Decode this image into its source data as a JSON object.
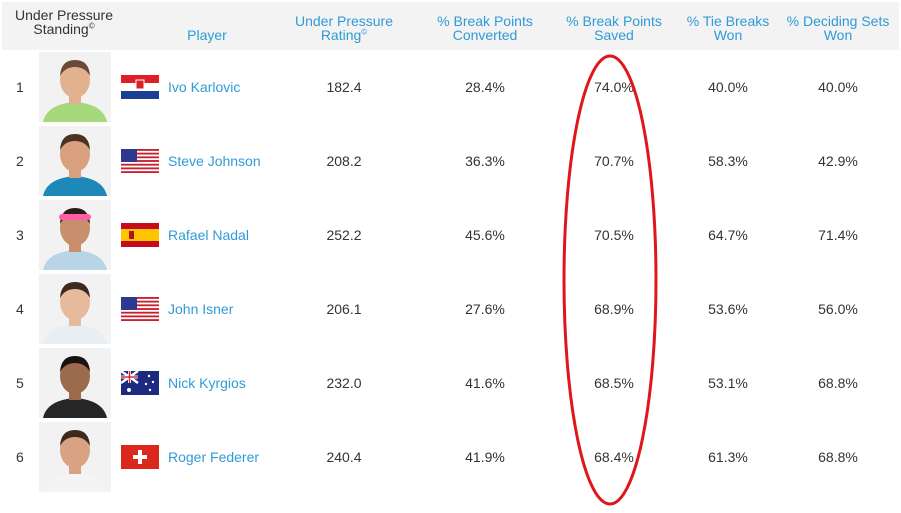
{
  "headers": {
    "standing": "Under Pressure Standing",
    "player": "Player",
    "rating": "Under Pressure Rating",
    "bp_converted": "% Break Points Converted",
    "bp_saved": "% Break Points Saved",
    "tie_breaks": "% Tie Breaks Won",
    "deciding_sets": "% Deciding Sets Won",
    "copyright_mark": "©"
  },
  "rows": [
    {
      "rank": "1",
      "player": "Ivo Karlovic",
      "flag": "croatia-flag",
      "rating": "182.4",
      "bp_converted": "28.4%",
      "bp_saved": "74.0%",
      "tie_breaks": "40.0%",
      "deciding_sets": "40.0%",
      "shirt_color": "#a5d87b",
      "skin_color": "#e2b28f",
      "hair_color": "#6b4a35"
    },
    {
      "rank": "2",
      "player": "Steve Johnson",
      "flag": "usa-flag",
      "rating": "208.2",
      "bp_converted": "36.3%",
      "bp_saved": "70.7%",
      "tie_breaks": "58.3%",
      "deciding_sets": "42.9%",
      "shirt_color": "#1e88b8",
      "skin_color": "#d9a07e",
      "hair_color": "#4a3322"
    },
    {
      "rank": "3",
      "player": "Rafael Nadal",
      "flag": "spain-flag",
      "rating": "252.2",
      "bp_converted": "45.6%",
      "bp_saved": "70.5%",
      "tie_breaks": "64.7%",
      "deciding_sets": "71.4%",
      "shirt_color": "#b8d4e6",
      "skin_color": "#c98f6c",
      "hair_color": "#2b1d15"
    },
    {
      "rank": "4",
      "player": "John Isner",
      "flag": "usa-flag",
      "rating": "206.1",
      "bp_converted": "27.6%",
      "bp_saved": "68.9%",
      "tie_breaks": "53.6%",
      "deciding_sets": "56.0%",
      "shirt_color": "#e9eef2",
      "skin_color": "#e6bb9b",
      "hair_color": "#3b2a20"
    },
    {
      "rank": "5",
      "player": "Nick Kyrgios",
      "flag": "australia-flag",
      "rating": "232.0",
      "bp_converted": "41.6%",
      "bp_saved": "68.5%",
      "tie_breaks": "53.1%",
      "deciding_sets": "68.8%",
      "shirt_color": "#262626",
      "skin_color": "#9c6a4d",
      "hair_color": "#1a1410"
    },
    {
      "rank": "6",
      "player": "Roger Federer",
      "flag": "switzerland-flag",
      "rating": "240.4",
      "bp_converted": "41.9%",
      "bp_saved": "68.4%",
      "tie_breaks": "61.3%",
      "deciding_sets": "68.8%",
      "shirt_color": "#f4f4f4",
      "skin_color": "#d8a283",
      "hair_color": "#3d2a1e"
    }
  ],
  "colors": {
    "link": "#2f9bd6",
    "rating_highlight": "#cdf23a",
    "annotation_ellipse": "#e0161b",
    "header_bg": "#f3f3f3"
  }
}
